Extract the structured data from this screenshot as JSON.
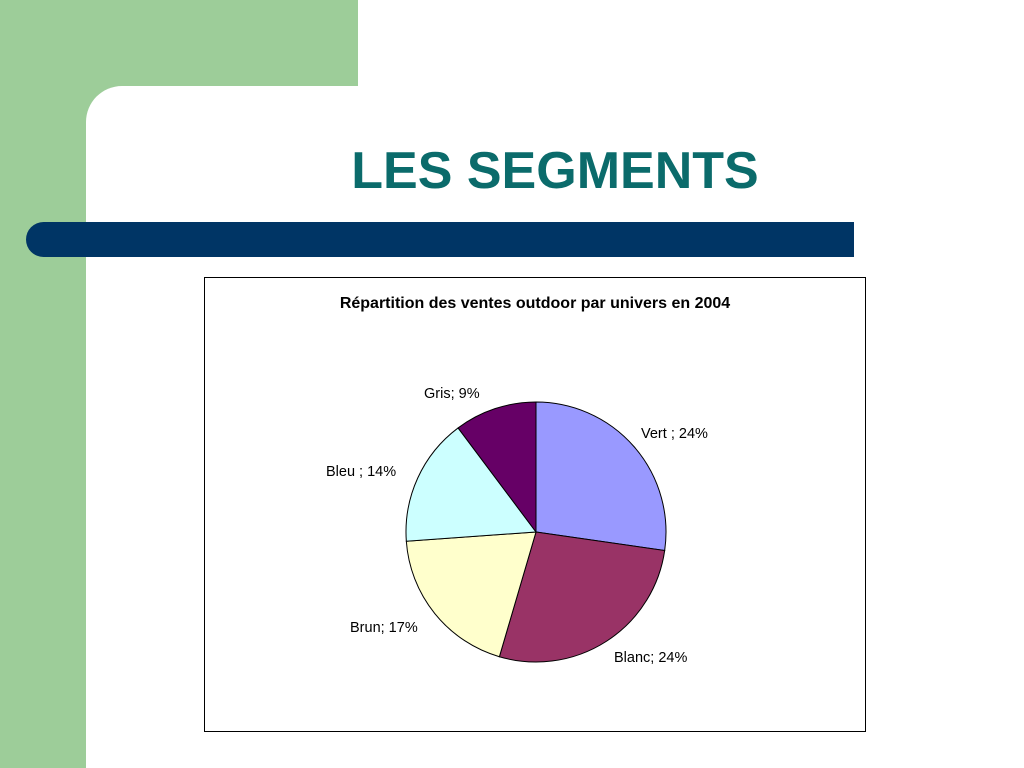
{
  "slide": {
    "title": "LES SEGMENTS",
    "colors": {
      "background_left": "#9dcd99",
      "title_text": "#0b6b6b",
      "title_bar": "#003565"
    }
  },
  "chart_data": {
    "type": "pie",
    "title": "Répartition des ventes outdoor par univers en 2004",
    "slices": [
      {
        "name": "Vert",
        "value": 24,
        "label": "Vert ; 24%",
        "color": "#9999ff"
      },
      {
        "name": "Blanc",
        "value": 24,
        "label": "Blanc; 24%",
        "color": "#993366"
      },
      {
        "name": "Brun",
        "value": 17,
        "label": "Brun; 17%",
        "color": "#ffffcc"
      },
      {
        "name": "Bleu",
        "value": 14,
        "label": "Bleu ; 14%",
        "color": "#ccffff"
      },
      {
        "name": "Gris",
        "value": 9,
        "label": "Gris; 9%",
        "color": "#660066"
      }
    ]
  }
}
